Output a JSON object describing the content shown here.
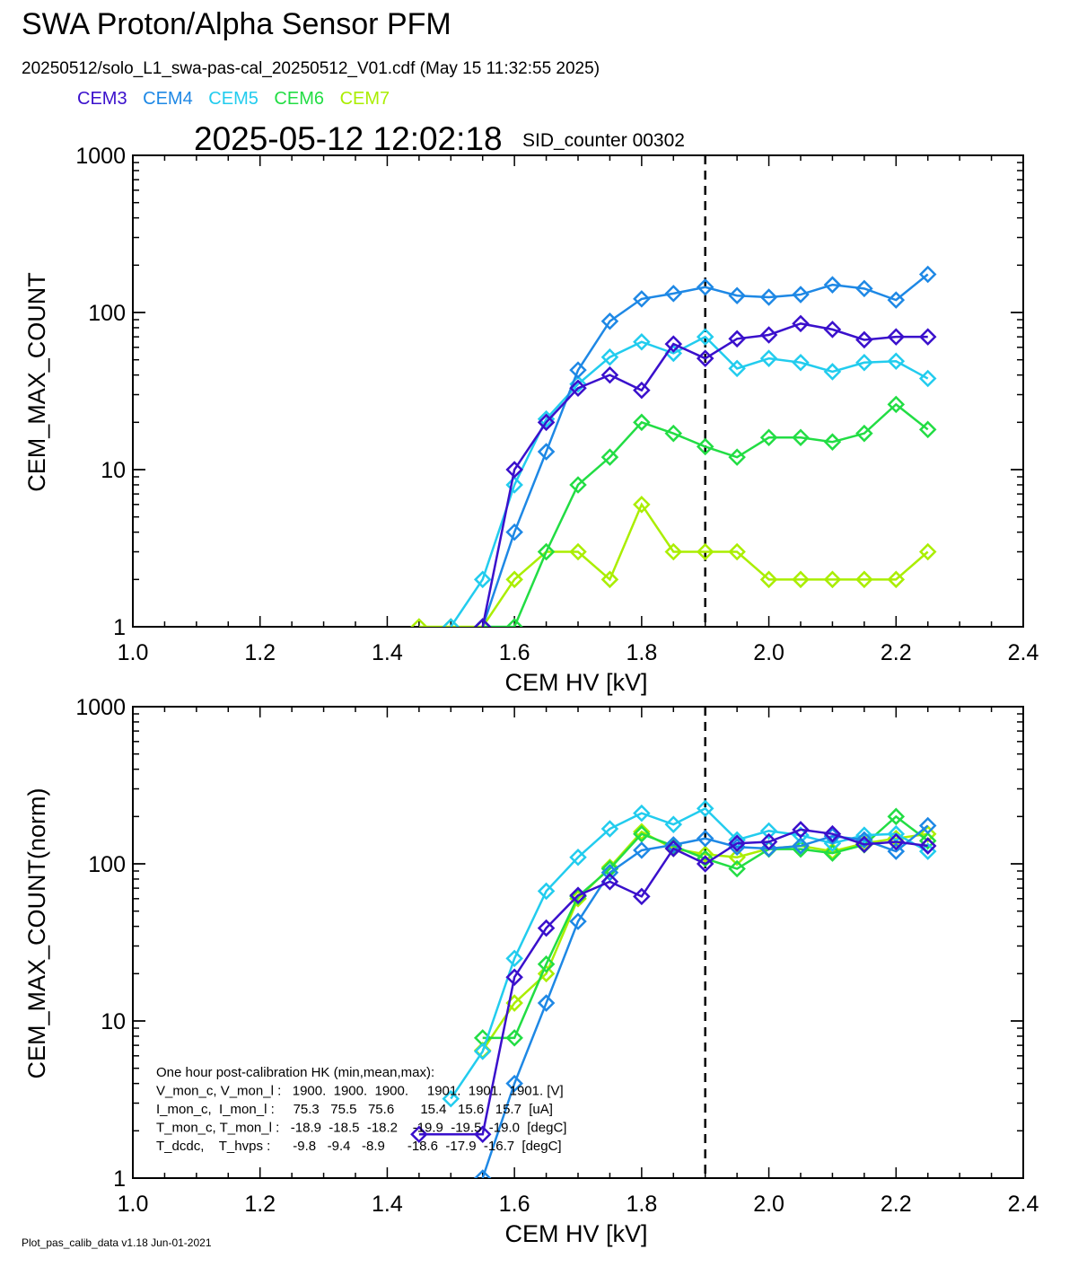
{
  "header": {
    "title": "SWA Proton/Alpha Sensor PFM",
    "subtitle": "20250512/solo_L1_swa-pas-cal_20250512_V01.cdf  (May 15 11:32:55 2025)",
    "timestamp": "2025-05-12 12:02:18",
    "sid_counter": "SID_counter 00302",
    "footer": "Plot_pas_calib_data v1.18 Jun-01-2021"
  },
  "legend": [
    {
      "name": "CEM3",
      "color": "#3a10cc"
    },
    {
      "name": "CEM4",
      "color": "#1e88e5"
    },
    {
      "name": "CEM5",
      "color": "#22ccee"
    },
    {
      "name": "CEM6",
      "color": "#22dd44"
    },
    {
      "name": "CEM7",
      "color": "#aaee00"
    }
  ],
  "hk_note": [
    "One hour post-calibration HK (min,mean,max):",
    "V_mon_c, V_mon_l :   1900.  1900.  1900.     1901.  1901.  1901. [V]",
    "I_mon_c,  I_mon_l :     75.3   75.5   75.6       15.4   15.6   15.7  [uA]",
    "T_mon_c, T_mon_l :   -18.9  -18.5  -18.2    -19.9  -19.5  -19.0  [degC]",
    "T_dcdc,    T_hvps :      -9.8   -9.4   -8.9      -18.6  -17.9  -16.7  [degC]"
  ],
  "chart_data": [
    {
      "type": "line",
      "xlabel": "CEM HV [kV]",
      "ylabel": "CEM_MAX_COUNT",
      "xlim": [
        1.0,
        2.4
      ],
      "ylim": [
        1,
        1000
      ],
      "yscale": "log",
      "xticks": [
        "1.0",
        "1.2",
        "1.4",
        "1.6",
        "1.8",
        "2.0",
        "2.2",
        "2.4"
      ],
      "yticks": [
        "1",
        "10",
        "100",
        "1000"
      ],
      "vline_x": 1.9,
      "marker": "diamond",
      "series": [
        {
          "name": "CEM7",
          "color": "#aaee00",
          "x": [
            1.45,
            1.5,
            1.55,
            1.6,
            1.65,
            1.7,
            1.75,
            1.8,
            1.85,
            1.9,
            1.95,
            2.0,
            2.05,
            2.1,
            2.15,
            2.2,
            2.25
          ],
          "y": [
            1,
            1,
            1,
            2,
            3,
            3,
            2,
            6,
            3,
            3,
            3,
            2,
            2,
            2,
            2,
            2,
            3
          ]
        },
        {
          "name": "CEM6",
          "color": "#22dd44",
          "x": [
            1.55,
            1.6,
            1.65,
            1.7,
            1.75,
            1.8,
            1.85,
            1.9,
            1.95,
            2.0,
            2.05,
            2.1,
            2.15,
            2.2,
            2.25
          ],
          "y": [
            1,
            1,
            3,
            8,
            12,
            20,
            17,
            14,
            12,
            16,
            16,
            15,
            17,
            26,
            18
          ]
        },
        {
          "name": "CEM5",
          "color": "#22ccee",
          "x": [
            1.5,
            1.55,
            1.6,
            1.65,
            1.7,
            1.75,
            1.8,
            1.85,
            1.9,
            1.95,
            2.0,
            2.05,
            2.1,
            2.15,
            2.2,
            2.25
          ],
          "y": [
            1,
            2,
            8,
            21,
            35,
            52,
            65,
            55,
            70,
            44,
            51,
            48,
            42,
            48,
            49,
            38
          ]
        },
        {
          "name": "CEM4",
          "color": "#1e88e5",
          "x": [
            1.55,
            1.6,
            1.65,
            1.7,
            1.75,
            1.8,
            1.85,
            1.9,
            1.95,
            2.0,
            2.05,
            2.1,
            2.15,
            2.2,
            2.25
          ],
          "y": [
            1,
            4,
            13,
            43,
            88,
            122,
            132,
            145,
            128,
            125,
            130,
            150,
            142,
            120,
            175
          ]
        },
        {
          "name": "CEM3",
          "color": "#3a10cc",
          "x": [
            1.55,
            1.6,
            1.65,
            1.7,
            1.75,
            1.8,
            1.85,
            1.9,
            1.95,
            2.0,
            2.05,
            2.1,
            2.15,
            2.2,
            2.25
          ],
          "y": [
            1,
            10,
            20,
            33,
            40,
            32,
            63,
            51,
            68,
            72,
            85,
            78,
            67,
            70,
            70
          ]
        }
      ]
    },
    {
      "type": "line",
      "xlabel": "CEM HV [kV]",
      "ylabel": "CEM_MAX_COUNT(norm)",
      "xlim": [
        1.0,
        2.4
      ],
      "ylim": [
        1,
        1000
      ],
      "yscale": "log",
      "xticks": [
        "1.0",
        "1.2",
        "1.4",
        "1.6",
        "1.8",
        "2.0",
        "2.2",
        "2.4"
      ],
      "yticks": [
        "1",
        "10",
        "100",
        "1000"
      ],
      "vline_x": 1.9,
      "marker": "diamond",
      "series": [
        {
          "name": "CEM7",
          "color": "#aaee00",
          "x": [
            1.55,
            1.6,
            1.65,
            1.7,
            1.75,
            1.8,
            1.85,
            1.9,
            1.95,
            2.0,
            2.05,
            2.1,
            2.15,
            2.2,
            2.25
          ],
          "y": [
            6.5,
            13,
            20,
            60,
            95,
            160,
            125,
            115,
            110,
            125,
            130,
            120,
            135,
            145,
            155
          ]
        },
        {
          "name": "CEM6",
          "color": "#22dd44",
          "x": [
            1.55,
            1.6,
            1.65,
            1.7,
            1.75,
            1.8,
            1.85,
            1.9,
            1.95,
            2.0,
            2.05,
            2.1,
            2.15,
            2.2,
            2.25
          ],
          "y": [
            7.8,
            7.8,
            23,
            62,
            93,
            155,
            130,
            108,
            93,
            124,
            124,
            117,
            132,
            200,
            140
          ]
        },
        {
          "name": "CEM5",
          "color": "#22ccee",
          "x": [
            1.5,
            1.55,
            1.6,
            1.65,
            1.7,
            1.75,
            1.8,
            1.85,
            1.9,
            1.95,
            2.0,
            2.05,
            2.1,
            2.15,
            2.2,
            2.25
          ],
          "y": [
            3.2,
            6.4,
            25,
            67,
            110,
            167,
            210,
            178,
            225,
            142,
            162,
            152,
            135,
            152,
            155,
            120
          ]
        },
        {
          "name": "CEM4",
          "color": "#1e88e5",
          "x": [
            1.55,
            1.6,
            1.65,
            1.7,
            1.75,
            1.8,
            1.85,
            1.9,
            1.95,
            2.0,
            2.05,
            2.1,
            2.15,
            2.2,
            2.25
          ],
          "y": [
            1,
            4,
            13,
            43,
            88,
            122,
            132,
            145,
            128,
            125,
            130,
            150,
            142,
            120,
            175
          ]
        },
        {
          "name": "CEM3",
          "color": "#3a10cc",
          "x": [
            1.45,
            1.55,
            1.6,
            1.65,
            1.7,
            1.75,
            1.8,
            1.85,
            1.9,
            1.95,
            2.0,
            2.05,
            2.1,
            2.15,
            2.2,
            2.25
          ],
          "y": [
            1.9,
            1.9,
            19,
            39,
            63,
            77,
            62,
            125,
            100,
            135,
            138,
            165,
            155,
            133,
            138,
            130
          ]
        }
      ]
    }
  ]
}
